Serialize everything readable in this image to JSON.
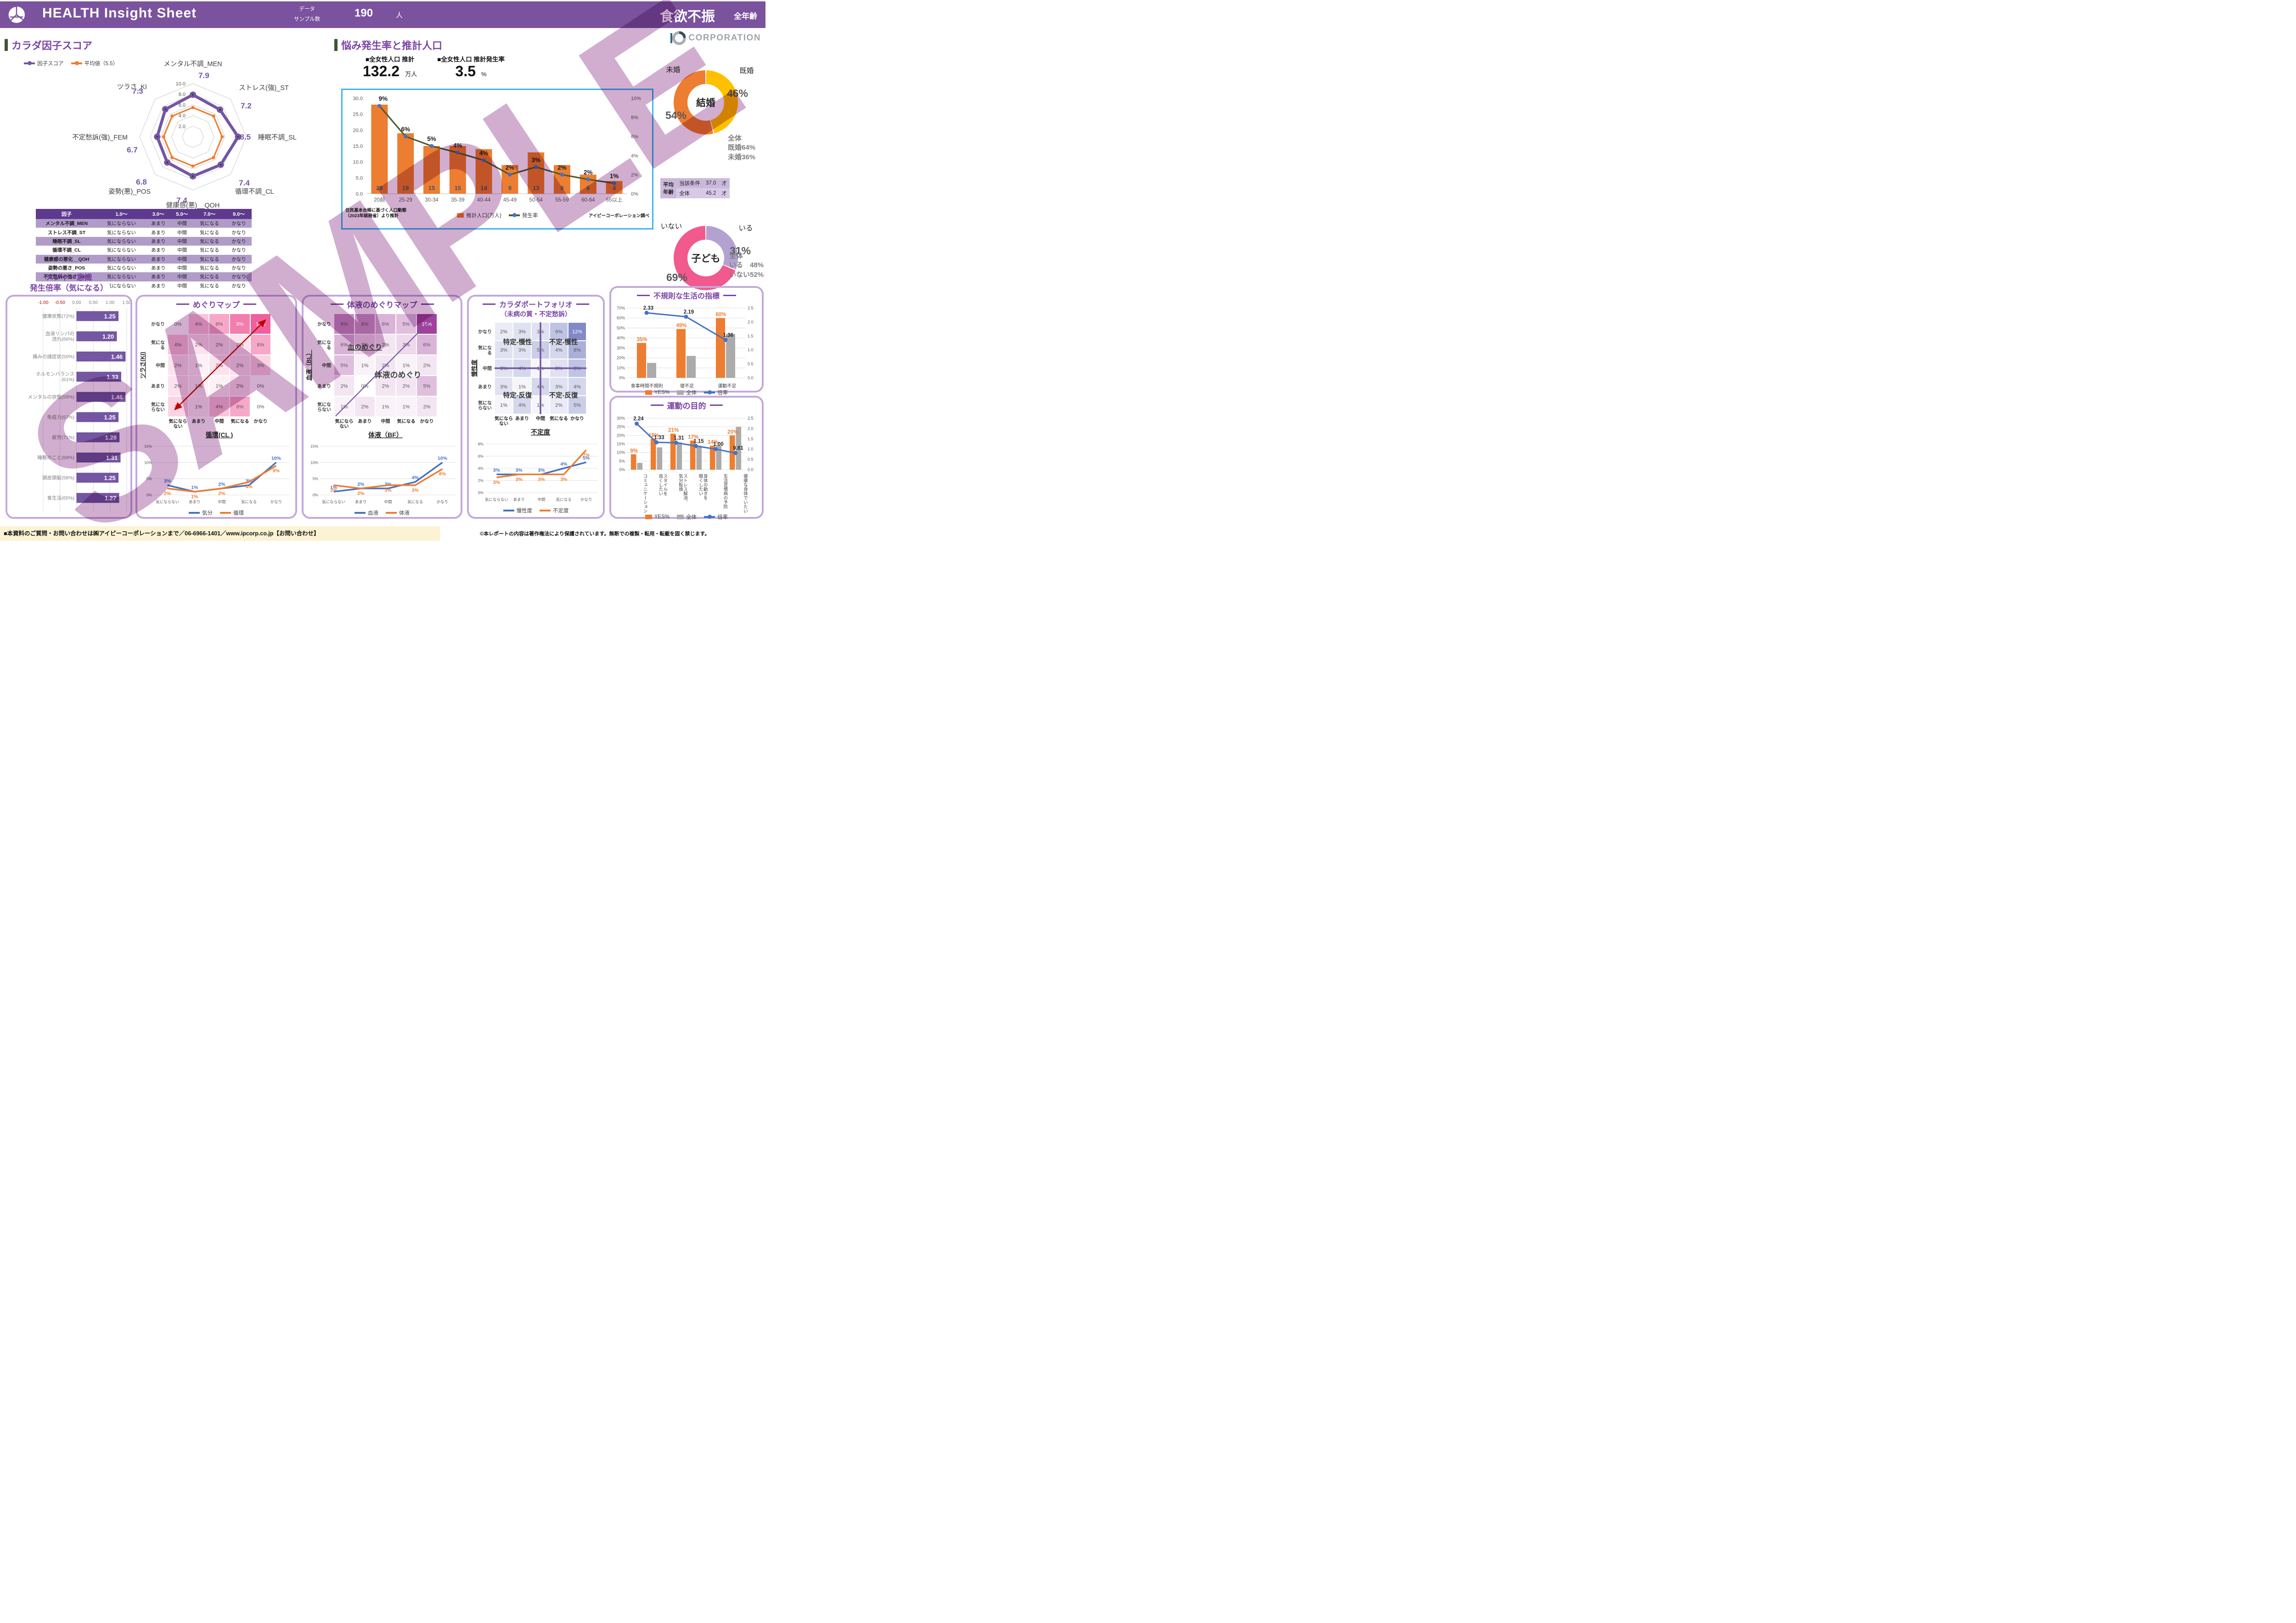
{
  "header": {
    "title": "HEALTH Insight Sheet",
    "sample_label_1": "データ",
    "sample_label_2": "サンプル数",
    "sample_value": "190",
    "sample_unit": "人",
    "condition": "食欲不振",
    "scope": "全年齢"
  },
  "logo": {
    "text": "CORPORATION"
  },
  "sections": {
    "radar": "カラダ因子スコア",
    "population": "悩み発生率と推計人口"
  },
  "stats": [
    {
      "label": "■全女性人口 推計",
      "value": "132.2",
      "unit": "万人"
    },
    {
      "label": "■全女性人口 推計発生率",
      "value": "3.5",
      "unit": "%"
    }
  ],
  "factor_table": {
    "headers": [
      "因子",
      "1.0〜",
      "3.0〜",
      "5.0〜",
      "7.0〜",
      "9.0〜"
    ],
    "rows": [
      [
        "メンタル不調_MEN",
        "気にならない",
        "あまり",
        "中間",
        "気になる",
        "かなり"
      ],
      [
        "ストレス不調_ST",
        "気にならない",
        "あまり",
        "中間",
        "気になる",
        "かなり"
      ],
      [
        "睡眠不調_SL",
        "気にならない",
        "あまり",
        "中間",
        "気になる",
        "かなり"
      ],
      [
        "循環不調_CL",
        "気にならない",
        "あまり",
        "中間",
        "気になる",
        "かなり"
      ],
      [
        "健康感の悪化__QOH",
        "気にならない",
        "あまり",
        "中間",
        "気になる",
        "かなり"
      ],
      [
        "姿勢の悪さ_POS",
        "気にならない",
        "あまり",
        "中間",
        "気になる",
        "かなり"
      ],
      [
        "不定愁訴の強さ_FEM",
        "気にならない",
        "あまり",
        "中間",
        "気になる",
        "かなり"
      ],
      [
        "ツラさ_KI",
        "気にならない",
        "あまり",
        "中間",
        "気になる",
        "かなり"
      ]
    ]
  },
  "age_table": {
    "row_header": "平均\n年齢",
    "rows": [
      [
        "当該条件",
        "37.0",
        "才"
      ],
      [
        "全体",
        "45.2",
        "才"
      ]
    ]
  },
  "footer": {
    "left": "■本資料のご質問・お問い合わせは㈱アイピーコーポレーションまで／06-6966-1401／www.ipcorp.co.jp【お問い合わせ】",
    "right": "©本レポートの内容は著作権法により保護されています。無断での複製・転用・転載を固く禁じます。"
  },
  "watermark": "SAMPLE",
  "colors": {
    "header_purple": "#7a529e",
    "accent_purple": "#7b44a5",
    "orange": "#ED7D31",
    "blue_box_border": "#3fb6e8"
  },
  "chart_data": [
    {
      "key": "factor_radar",
      "type": "radar",
      "title": "カラダ因子スコア",
      "axes": [
        "メンタル不調_MEN",
        "ストレス(強)_ST",
        "睡眠不調_SL",
        "循環不調_CL",
        "健康感(悪)__QOH",
        "姿勢(悪)_POS",
        "不定愁訴(強)_FEM",
        "ツラさ_KI"
      ],
      "rings": [
        2,
        4,
        6,
        8,
        10
      ],
      "range": [
        0,
        10
      ],
      "series": [
        {
          "name": "因子スコア",
          "color": "#7456A3",
          "values": [
            7.9,
            7.2,
            8.5,
            7.4,
            7.4,
            6.8,
            6.7,
            7.3
          ]
        },
        {
          "name": "平均値（5.5）",
          "color": "#ED7D31",
          "values": [
            5.5,
            5.5,
            5.5,
            5.5,
            5.5,
            5.5,
            5.5,
            5.5
          ]
        }
      ]
    },
    {
      "key": "population",
      "type": "bar",
      "title": "悩み発生率と推計人口",
      "categories": [
        "20前",
        "25-29",
        "30-34",
        "35-39",
        "40-44",
        "45-49",
        "50-54",
        "55-59",
        "60-64",
        "65以上"
      ],
      "series": [
        {
          "name": "推計人口(万人)",
          "type": "bar",
          "color": "#ED7D31",
          "values": [
            28,
            19,
            15,
            15,
            14,
            9,
            13,
            9,
            6,
            4
          ]
        },
        {
          "name": "発生率",
          "type": "line",
          "color": "#4C5B2F",
          "marker": "#4472C4",
          "values": [
            9.2,
            6,
            5,
            4.3,
            3.5,
            2,
            2.8,
            2,
            1.5,
            1.1
          ],
          "labels": [
            "9%",
            "6%",
            "5%",
            "4%",
            "4%",
            "2%",
            "3%",
            "2%",
            "2%",
            "1%"
          ]
        }
      ],
      "ylim_left": [
        0,
        30
      ],
      "yticks_left": [
        "0.0",
        "5.0",
        "10.0",
        "15.0",
        "20.0",
        "25.0",
        "30.0"
      ],
      "ylim_right": [
        0,
        10
      ],
      "yticks_right": [
        "0%",
        "2%",
        "4%",
        "6%",
        "8%",
        "10%"
      ],
      "source_left": "住民基本台帳に基づく人口動態\n（2023年総務省）より推計",
      "source_right": "アイピーコーポレーション調べ"
    },
    {
      "key": "marriage",
      "type": "pie",
      "center_label": "結婚",
      "slices": [
        {
          "label": "既婚",
          "pct": "46%",
          "value": 46,
          "color": "#FFC000"
        },
        {
          "label": "未婚",
          "pct": "54%",
          "value": 54,
          "color": "#ED7D31"
        }
      ],
      "note": [
        "全体",
        "既婚64%",
        "未婚36%"
      ]
    },
    {
      "key": "children",
      "type": "pie",
      "center_label": "子ども",
      "slices": [
        {
          "label": "いる",
          "pct": "31%",
          "value": 31,
          "color": "#B3A2D0"
        },
        {
          "label": "いない",
          "pct": "69%",
          "value": 69,
          "color": "#F2598C"
        }
      ],
      "note": [
        "全体",
        "いる　48%",
        "いない52%"
      ]
    },
    {
      "key": "major",
      "type": "bar",
      "title": "メジャー意識",
      "subtitle": "発生倍率（気になる）",
      "xticks": [
        "-1.00",
        "-0.50",
        "0.00",
        "0.50",
        "1.00",
        "1.50"
      ],
      "xlim": [
        -1.0,
        1.5
      ],
      "categories": [
        "健康状態(72%)",
        "血液リンパの\n流れ(66%)",
        "痛みの諸症状(50%)",
        "ホルモンバランス\n(61%)",
        "メンタルの状態(59%)",
        "免疫力(67%)",
        "疲労(71%)",
        "睡眠のこと(69%)",
        "頭皮頭髪(58%)",
        "食生活(65%)"
      ],
      "values": [
        1.25,
        1.2,
        1.46,
        1.33,
        1.46,
        1.25,
        1.28,
        1.31,
        1.25,
        1.27
      ],
      "bar_color": "#7456A3"
    },
    {
      "key": "meguri_map",
      "type": "heatmap",
      "title": "めぐりマップ",
      "x_title": "循環(CL )",
      "y_title": "ツラさ(KI)",
      "cols": [
        "気になら\nない",
        "あまり",
        "中間",
        "気になる",
        "かなり"
      ],
      "rows": [
        "かなり",
        "気にな\nる",
        "中間",
        "あまり",
        "気にな\nらない"
      ],
      "values": [
        [
          0,
          4,
          6,
          9,
          11
        ],
        [
          4,
          2,
          2,
          2,
          6
        ],
        [
          2,
          1,
          2,
          2,
          3
        ],
        [
          2,
          1,
          1,
          2,
          0
        ],
        [
          3,
          1,
          4,
          6,
          0
        ]
      ],
      "unit": "%",
      "max": 11,
      "color_low": "#FFFFFF",
      "color_high": "#F0609B",
      "decoration": "red-arrow"
    },
    {
      "key": "meguri_line",
      "type": "line",
      "categories": [
        "気にならない",
        "あまり",
        "中間",
        "気になる",
        "かなり"
      ],
      "yticks": [
        "0%",
        "5%",
        "10%",
        "15%"
      ],
      "ymax": 15,
      "series": [
        {
          "name": "気分",
          "color": "#4472C4",
          "values": [
            3,
            1,
            2,
            3,
            10
          ],
          "labels": [
            "3%",
            "1%",
            "2%",
            "3%",
            "10%"
          ]
        },
        {
          "name": "循環",
          "color": "#ED7D31",
          "values": [
            2,
            1,
            2,
            4,
            9
          ],
          "labels": [
            "2%",
            "1%",
            "2%",
            "4%",
            "9%"
          ]
        }
      ]
    },
    {
      "key": "taieki_map",
      "type": "heatmap",
      "title": "体液のめぐりマップ",
      "x_title": "体液（BF）",
      "y_title": "血液（BL）",
      "cols": [
        "気になら\nない",
        "あまり",
        "中間",
        "気になる",
        "かなり"
      ],
      "rows": [
        "かなり",
        "気にな\nる",
        "中間",
        "あまり",
        "気にな\nらない"
      ],
      "values": [
        [
          9,
          8,
          6,
          5,
          15
        ],
        [
          6,
          3,
          2,
          3,
          6
        ],
        [
          5,
          1,
          2,
          1,
          2
        ],
        [
          2,
          0,
          2,
          2,
          5
        ],
        [
          1,
          2,
          1,
          1,
          2
        ]
      ],
      "unit": "%",
      "max": 15,
      "color_low": "#FFFFFF",
      "color_high": "#A3409D",
      "decoration": "purple-diagonal",
      "annotations": [
        "血のめぐり",
        "体液のめぐり"
      ]
    },
    {
      "key": "taieki_line",
      "type": "line",
      "categories": [
        "気にならない",
        "あまり",
        "中間",
        "気になる",
        "かなり"
      ],
      "yticks": [
        "0%",
        "5%",
        "10%",
        "15%"
      ],
      "ymax": 15,
      "series": [
        {
          "name": "血液",
          "color": "#4472C4",
          "values": [
            1,
            2,
            2,
            4,
            10
          ],
          "labels": [
            "1%",
            "2%",
            "2%",
            "4%",
            "10%"
          ]
        },
        {
          "name": "体液",
          "color": "#ED7D31",
          "values": [
            3,
            2,
            3,
            3,
            8
          ],
          "labels": [
            "3%",
            "2%",
            "3%",
            "3%",
            "8%"
          ]
        }
      ]
    },
    {
      "key": "portfolio_map",
      "type": "heatmap",
      "title": "カラダポートフォリオ",
      "subtitle": "（未病の質・不定愁訴）",
      "x_title": "不定度",
      "y_title": "慢性度",
      "cols": [
        "気になら\nない",
        "あまり",
        "中間",
        "気になる",
        "かなり"
      ],
      "rows": [
        "かなり",
        "気にな\nる",
        "中間",
        "あまり",
        "気にな\nらない"
      ],
      "values": [
        [
          2,
          3,
          3,
          6,
          12
        ],
        [
          3,
          3,
          5,
          4,
          8
        ],
        [
          3,
          4,
          1,
          3,
          6
        ],
        [
          3,
          1,
          4,
          3,
          4
        ],
        [
          1,
          4,
          1,
          2,
          5
        ]
      ],
      "unit": "%",
      "max": 12,
      "color_low": "#FFFFFF",
      "color_high": "#8189C6",
      "decoration": "cross",
      "quadrants": [
        "特定-慢性",
        "不定-慢性",
        "特定-反復",
        "不定-反復"
      ]
    },
    {
      "key": "portfolio_line",
      "type": "line",
      "categories": [
        "気にならない",
        "あまり",
        "中間",
        "気になる",
        "かなり"
      ],
      "yticks": [
        "0%",
        "2%",
        "4%",
        "6%",
        "8%"
      ],
      "ymax": 8,
      "series": [
        {
          "name": "慢性度",
          "color": "#4472C4",
          "values": [
            3,
            3,
            3,
            4,
            5
          ],
          "labels": [
            "3%",
            "3%",
            "3%",
            "4%",
            "5%"
          ]
        },
        {
          "name": "不定度",
          "color": "#ED7D31",
          "values": [
            2.5,
            3,
            3,
            3,
            7
          ],
          "labels": [
            "3%",
            "3%",
            "3%",
            "3%",
            "7%"
          ]
        }
      ]
    },
    {
      "key": "irregular",
      "type": "bar",
      "title": "不規則な生活の指標",
      "categories": [
        "食事時間不規則",
        "寝不足",
        "運動不足"
      ],
      "series": [
        {
          "name": "YES%",
          "color": "#ED7D31",
          "values": [
            35,
            49,
            60
          ],
          "labels": [
            "35%",
            "49%",
            "60%"
          ]
        },
        {
          "name": "全体",
          "color": "#ABABAB",
          "values": [
            15,
            22,
            44
          ]
        },
        {
          "name": "倍率",
          "type": "line",
          "color": "#4472C4",
          "values": [
            2.33,
            2.19,
            1.36
          ],
          "labels": [
            "2.33",
            "2.19",
            "1.36"
          ]
        }
      ],
      "ylim_left": [
        0,
        70
      ],
      "yticks_left": [
        "0%",
        "10%",
        "20%",
        "30%",
        "40%",
        "50%",
        "60%",
        "70%"
      ],
      "ylim_right": [
        0,
        2.5
      ],
      "yticks_right": [
        "0.0",
        "0.5",
        "1.0",
        "1.5",
        "2.0",
        "2.5"
      ]
    },
    {
      "key": "exercise",
      "type": "bar",
      "title": "運動の目的",
      "categories": [
        "コミュニケーション",
        "スタイルを\n良くしたい",
        "ストレス解消、\n気分転換",
        "身体の動きを\n軽くしたい",
        "生活習慣病の予防",
        "健康な身体でいたい"
      ],
      "series": [
        {
          "name": "YES%",
          "color": "#ED7D31",
          "values": [
            9,
            18,
            21,
            17,
            14,
            20
          ],
          "labels": [
            "9%",
            "18%",
            "21%",
            "17%",
            "14%",
            "20%"
          ]
        },
        {
          "name": "全体",
          "color": "#ABABAB",
          "values": [
            4,
            13,
            16,
            14,
            14,
            25
          ]
        },
        {
          "name": "倍率",
          "type": "line",
          "color": "#4472C4",
          "values": [
            2.24,
            1.33,
            1.31,
            1.15,
            1.0,
            0.81
          ],
          "labels": [
            "2.24",
            "1.33",
            "1.31",
            "1.15",
            "1.00",
            "0.81"
          ]
        }
      ],
      "ylim_left": [
        0,
        30
      ],
      "yticks_left": [
        "0%",
        "5%",
        "10%",
        "15%",
        "20%",
        "25%",
        "30%"
      ],
      "ylim_right": [
        0,
        2.5
      ],
      "yticks_right": [
        "0.0",
        "0.5",
        "1.0",
        "1.5",
        "2.0",
        "2.5"
      ]
    }
  ]
}
